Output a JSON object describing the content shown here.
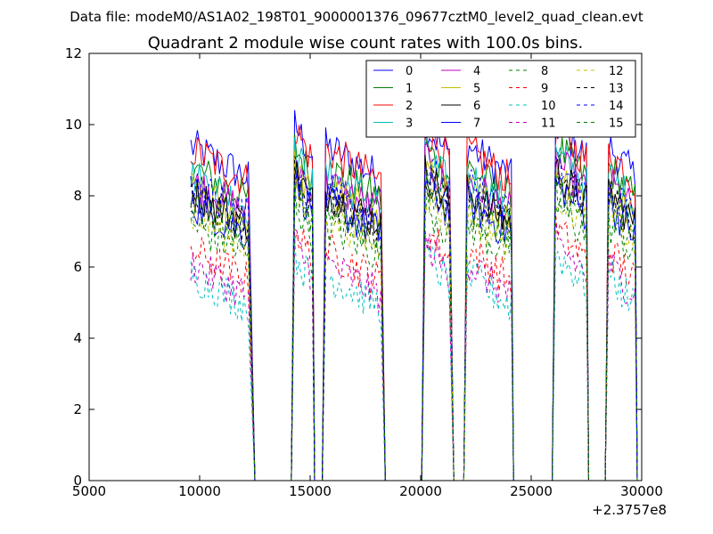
{
  "figure": {
    "suptitle": "Data file: modeM0/AS1A02_198T01_9000001376_09677cztM0_level2_quad_clean.evt"
  },
  "chart_data": {
    "type": "line",
    "title": "Quadrant 2 module wise count rates with 100.0s bins.",
    "xlabel": "",
    "ylabel": "",
    "x_offset_label": "+2.3757e8",
    "xlim": [
      5000,
      30000
    ],
    "ylim": [
      0,
      12
    ],
    "xticks": [
      5000,
      10000,
      15000,
      20000,
      25000,
      30000
    ],
    "yticks": [
      0,
      2,
      4,
      6,
      8,
      10,
      12
    ],
    "bin_width_s": 100.0,
    "segments": [
      [
        9600,
        12200
      ],
      [
        14300,
        15100
      ],
      [
        15700,
        18200
      ],
      [
        20200,
        21300
      ],
      [
        22100,
        24100
      ],
      [
        26100,
        27500
      ],
      [
        28500,
        29700
      ]
    ],
    "gaps_zero_from": [
      12500,
      15200,
      18400,
      21500,
      24200,
      27600,
      29800
    ],
    "legend_location": "upper right",
    "series": [
      {
        "name": "0",
        "color": "#0000ff",
        "dash": "solid",
        "level": 8.9
      },
      {
        "name": "1",
        "color": "#008000",
        "dash": "solid",
        "level": 8.3
      },
      {
        "name": "2",
        "color": "#ff0000",
        "dash": "solid",
        "level": 8.8
      },
      {
        "name": "3",
        "color": "#00bfbf",
        "dash": "solid",
        "level": 8.1
      },
      {
        "name": "4",
        "color": "#bf00bf",
        "dash": "solid",
        "level": 7.9
      },
      {
        "name": "5",
        "color": "#bfbf00",
        "dash": "solid",
        "level": 7.7
      },
      {
        "name": "6",
        "color": "#000000",
        "dash": "solid",
        "level": 7.6
      },
      {
        "name": "7",
        "color": "#0000ff",
        "dash": "solid",
        "level": 7.3
      },
      {
        "name": "8",
        "color": "#008000",
        "dash": "dashed",
        "level": 6.7
      },
      {
        "name": "9",
        "color": "#ff0000",
        "dash": "dashed",
        "level": 6.0
      },
      {
        "name": "10",
        "color": "#00bfbf",
        "dash": "dashed",
        "level": 5.3
      },
      {
        "name": "11",
        "color": "#bf00bf",
        "dash": "dashed",
        "level": 5.6
      },
      {
        "name": "12",
        "color": "#bfbf00",
        "dash": "dashed",
        "level": 7.0
      },
      {
        "name": "13",
        "color": "#000000",
        "dash": "dashed",
        "level": 7.5
      },
      {
        "name": "14",
        "color": "#0000ff",
        "dash": "dashed",
        "level": 7.8
      },
      {
        "name": "15",
        "color": "#008000",
        "dash": "dashed",
        "level": 7.2
      }
    ]
  }
}
